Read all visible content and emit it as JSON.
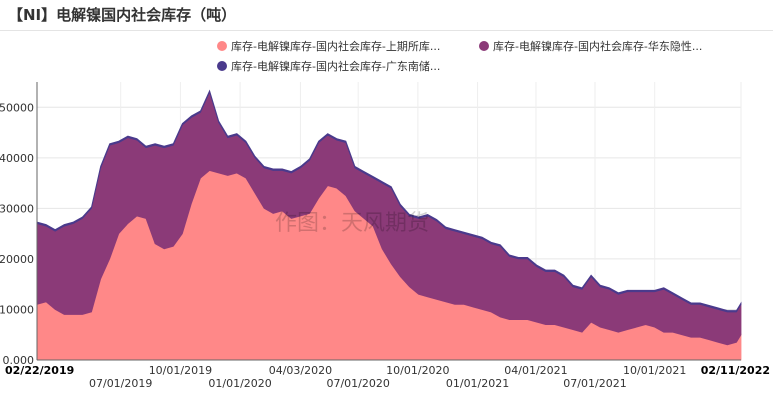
{
  "header": {
    "title": "【NI】电解镍国内社会库存（吨）"
  },
  "watermark": "作图：天风期货",
  "chart_data": {
    "type": "area",
    "stacked": true,
    "title": "",
    "xlabel": "",
    "ylabel": "",
    "ylim": [
      0,
      55000
    ],
    "xlim": [
      "2019-02-22",
      "2022-02-11"
    ],
    "grid": true,
    "legend": "top",
    "y_ticks": [
      0,
      10000,
      20000,
      30000,
      40000,
      50000
    ],
    "y_tick_labels": [
      "0.000",
      "10000",
      "20000",
      "30000",
      "40000",
      "50000"
    ],
    "x_ticks_row1": [
      {
        "date": "2019-02-22",
        "label": "02/22/2019",
        "bold": true
      },
      {
        "date": "2019-10-01",
        "label": "10/01/2019",
        "bold": false
      },
      {
        "date": "2020-04-03",
        "label": "04/03/2020",
        "bold": false
      },
      {
        "date": "2020-10-01",
        "label": "10/01/2020",
        "bold": false
      },
      {
        "date": "2021-04-01",
        "label": "04/01/2021",
        "bold": false
      },
      {
        "date": "2021-10-01",
        "label": "10/01/2021",
        "bold": false
      },
      {
        "date": "2022-02-11",
        "label": "02/11/2022",
        "bold": true
      }
    ],
    "x_ticks_row2": [
      {
        "date": "2019-07-01",
        "label": "07/01/2019"
      },
      {
        "date": "2020-01-01",
        "label": "01/01/2020"
      },
      {
        "date": "2020-07-01",
        "label": "07/01/2020"
      },
      {
        "date": "2021-01-01",
        "label": "01/01/2021"
      },
      {
        "date": "2021-07-01",
        "label": "07/01/2021"
      }
    ],
    "x": [
      "2019-02-22",
      "2019-03-08",
      "2019-03-22",
      "2019-04-05",
      "2019-04-19",
      "2019-05-03",
      "2019-05-17",
      "2019-05-31",
      "2019-06-14",
      "2019-06-28",
      "2019-07-12",
      "2019-07-26",
      "2019-08-09",
      "2019-08-23",
      "2019-09-06",
      "2019-09-20",
      "2019-10-04",
      "2019-10-18",
      "2019-11-01",
      "2019-11-15",
      "2019-11-29",
      "2019-12-13",
      "2019-12-27",
      "2020-01-10",
      "2020-01-24",
      "2020-02-07",
      "2020-02-21",
      "2020-03-06",
      "2020-03-20",
      "2020-04-03",
      "2020-04-17",
      "2020-05-01",
      "2020-05-15",
      "2020-05-29",
      "2020-06-12",
      "2020-06-26",
      "2020-07-10",
      "2020-07-24",
      "2020-08-07",
      "2020-08-21",
      "2020-09-04",
      "2020-09-18",
      "2020-10-02",
      "2020-10-16",
      "2020-10-30",
      "2020-11-13",
      "2020-11-27",
      "2020-12-11",
      "2020-12-25",
      "2021-01-08",
      "2021-01-22",
      "2021-02-05",
      "2021-02-19",
      "2021-03-05",
      "2021-03-19",
      "2021-04-02",
      "2021-04-16",
      "2021-04-30",
      "2021-05-14",
      "2021-05-28",
      "2021-06-11",
      "2021-06-25",
      "2021-07-09",
      "2021-07-23",
      "2021-08-06",
      "2021-08-20",
      "2021-09-03",
      "2021-09-17",
      "2021-10-01",
      "2021-10-15",
      "2021-10-29",
      "2021-11-12",
      "2021-11-26",
      "2021-12-10",
      "2021-12-24",
      "2022-01-07",
      "2022-01-21",
      "2022-02-04",
      "2022-02-11"
    ],
    "series": [
      {
        "name": "库存-电解镍库存-国内社会库存-上期所库...",
        "color": "#ff8888",
        "values": [
          11000,
          11500,
          10000,
          9000,
          9000,
          9000,
          9500,
          16000,
          20000,
          25000,
          27000,
          28500,
          28000,
          23000,
          22000,
          22500,
          25000,
          31000,
          36000,
          37500,
          37000,
          36500,
          37000,
          36000,
          33000,
          30000,
          29000,
          29500,
          28000,
          28500,
          29000,
          32000,
          34500,
          34000,
          32500,
          29500,
          28000,
          26500,
          22000,
          19000,
          16500,
          14500,
          13000,
          12500,
          12000,
          11500,
          11000,
          11000,
          10500,
          10000,
          9500,
          8500,
          8000,
          8000,
          8000,
          7500,
          7000,
          7000,
          6500,
          6000,
          5500,
          7500,
          6500,
          6000,
          5500,
          6000,
          6500,
          7000,
          6500,
          5500,
          5500,
          5000,
          4500,
          4500,
          4000,
          3500,
          3000,
          3500,
          5000
        ]
      },
      {
        "name": "库存-电解镍库存-国内社会库存-华东隐性...",
        "color": "#8b3a78",
        "values": [
          16000,
          15000,
          15500,
          17500,
          18000,
          19000,
          20500,
          22000,
          22500,
          18000,
          17000,
          15000,
          14000,
          19500,
          20000,
          20000,
          21500,
          17000,
          13000,
          15500,
          10000,
          7500,
          7500,
          7000,
          7000,
          8000,
          8500,
          8000,
          9000,
          9500,
          10500,
          11000,
          10000,
          9500,
          10500,
          8500,
          9000,
          9500,
          13000,
          15000,
          14000,
          14000,
          15000,
          16000,
          15500,
          14500,
          14500,
          14000,
          14000,
          14000,
          13500,
          14000,
          12500,
          12000,
          12000,
          11000,
          10500,
          10500,
          10000,
          8500,
          8500,
          9000,
          8000,
          8000,
          7500,
          7500,
          7000,
          6500,
          7000,
          8500,
          7500,
          7000,
          6500,
          6500,
          6500,
          6500,
          6500,
          6000,
          6000
        ]
      },
      {
        "name": "库存-电解镍库存-国内社会库存-广东南储...",
        "color": "#4a3a8c",
        "values": [
          300,
          300,
          300,
          300,
          300,
          300,
          300,
          300,
          300,
          300,
          300,
          300,
          300,
          300,
          300,
          300,
          300,
          300,
          300,
          300,
          300,
          300,
          300,
          300,
          300,
          300,
          300,
          300,
          300,
          300,
          300,
          300,
          300,
          300,
          300,
          300,
          300,
          300,
          300,
          300,
          300,
          300,
          300,
          300,
          300,
          300,
          300,
          300,
          300,
          300,
          300,
          300,
          300,
          300,
          300,
          300,
          300,
          300,
          300,
          300,
          300,
          300,
          300,
          300,
          300,
          300,
          300,
          300,
          300,
          300,
          300,
          300,
          300,
          300,
          300,
          300,
          300,
          300,
          300
        ]
      }
    ]
  }
}
